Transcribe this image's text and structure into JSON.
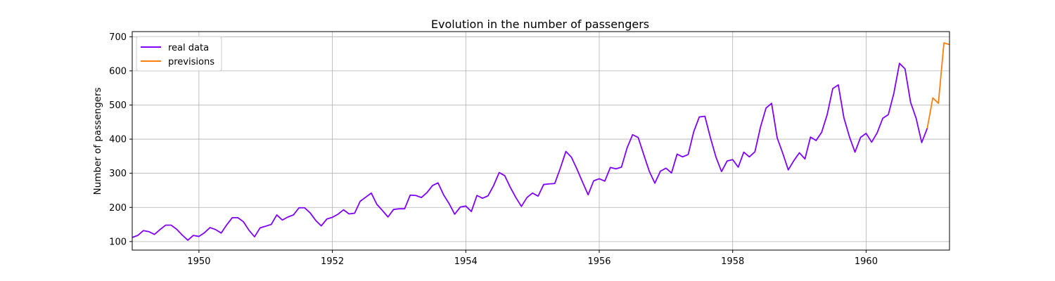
{
  "chart_data": {
    "type": "line",
    "title": "Evolution in the number of passengers",
    "xlabel": "",
    "ylabel": "Number of passengers",
    "xlim": [
      1949.0,
      1961.25
    ],
    "ylim": [
      75,
      715
    ],
    "grid": true,
    "legend_position": "top-left",
    "x_ticks": [
      1950,
      1952,
      1954,
      1956,
      1958,
      1960
    ],
    "y_ticks": [
      100,
      200,
      300,
      400,
      500,
      600,
      700
    ],
    "series": [
      {
        "name": "real data",
        "color": "#7f00ff",
        "x_start": 1949.0,
        "x_step": 0.08333333333333333,
        "values": [
          112,
          118,
          132,
          129,
          121,
          135,
          148,
          148,
          136,
          119,
          104,
          118,
          115,
          126,
          141,
          135,
          125,
          149,
          170,
          170,
          158,
          133,
          114,
          140,
          145,
          150,
          178,
          163,
          172,
          178,
          199,
          199,
          184,
          162,
          146,
          166,
          171,
          180,
          193,
          181,
          183,
          218,
          230,
          242,
          209,
          191,
          172,
          194,
          196,
          196,
          236,
          235,
          229,
          243,
          264,
          272,
          237,
          211,
          180,
          201,
          204,
          188,
          235,
          227,
          234,
          264,
          302,
          293,
          259,
          229,
          203,
          229,
          242,
          233,
          267,
          269,
          270,
          315,
          364,
          347,
          312,
          274,
          237,
          278,
          284,
          277,
          317,
          313,
          318,
          374,
          413,
          405,
          355,
          306,
          271,
          306,
          315,
          301,
          356,
          348,
          355,
          422,
          465,
          467,
          404,
          347,
          305,
          336,
          340,
          318,
          362,
          348,
          363,
          435,
          491,
          505,
          404,
          359,
          310,
          337,
          360,
          342,
          406,
          396,
          420,
          472,
          548,
          559,
          463,
          407,
          362,
          405,
          417,
          391,
          419,
          461,
          472,
          535,
          622,
          606,
          508,
          461,
          390,
          432
        ]
      },
      {
        "name": "previsions",
        "color": "#ff7f0e",
        "x_start": 1960.9166666666667,
        "x_step": 0.08333333333333333,
        "values": [
          432,
          521,
          505,
          682,
          677
        ]
      }
    ]
  }
}
